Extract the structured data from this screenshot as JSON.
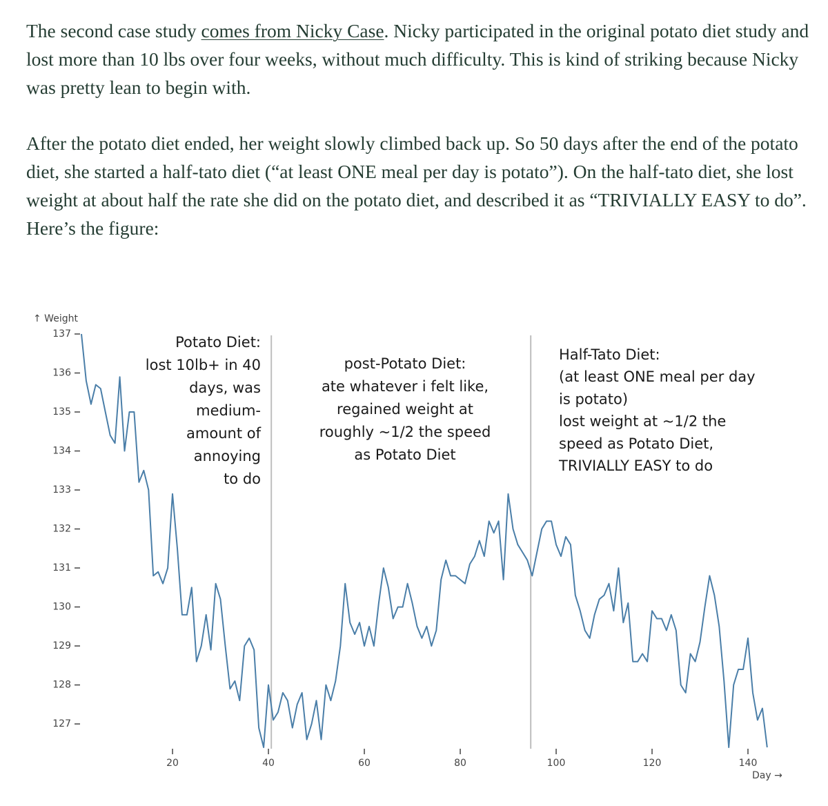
{
  "paragraphs": [
    {
      "before": "The second case study ",
      "link": "comes from Nicky Case",
      "after": ". Nicky participated in the original potato diet study and lost more than 10 lbs over four weeks, without much difficulty. This is kind of striking because Nicky was pretty lean to begin with."
    },
    {
      "text": "After the potato diet ended, her weight slowly climbed back up. So 50 days after the end of the potato diet, she started a half-tato diet (“at least ONE meal per day is potato”). On the half-tato diet, she lost weight at about half the rate she did on the potato diet, and described it as “TRIVIALLY EASY to do”. Here’s the figure:"
    }
  ],
  "chart_data": {
    "type": "line",
    "x_label": "Day →",
    "y_label": "↑ Weight",
    "color": "#4a7ea8",
    "xlim": [
      1,
      148
    ],
    "ylim": [
      126.4,
      137
    ],
    "xticks": [
      20,
      40,
      60,
      80,
      100,
      120,
      140
    ],
    "yticks": [
      127,
      128,
      129,
      130,
      131,
      132,
      133,
      134,
      135,
      136,
      137
    ],
    "vlines": [
      40.6,
      94.7
    ],
    "annotations": [
      [
        "Potato Diet:",
        "lost 10lb+ in 40",
        "days, was",
        "medium-",
        "amount of",
        "annoying",
        "to do"
      ],
      [
        "post-Potato Diet:",
        "ate whatever i felt like,",
        "regained weight at",
        "roughly ~1/2 the speed",
        "as Potato Diet"
      ],
      [
        "Half-Tato Diet:",
        "(at least ONE meal per day",
        "is potato)",
        "lost weight at ~1/2 the",
        "speed as Potato Diet,",
        "TRIVIALLY EASY to do"
      ]
    ],
    "x": [
      1,
      2,
      3,
      4,
      5,
      6,
      7,
      8,
      9,
      10,
      11,
      12,
      13,
      14,
      15,
      16,
      17,
      18,
      19,
      20,
      21,
      22,
      23,
      24,
      25,
      26,
      27,
      28,
      29,
      30,
      31,
      32,
      33,
      34,
      35,
      36,
      37,
      38,
      39,
      40,
      41,
      42,
      43,
      44,
      45,
      46,
      47,
      48,
      49,
      50,
      51,
      52,
      53,
      54,
      55,
      56,
      57,
      58,
      59,
      60,
      61,
      62,
      63,
      64,
      65,
      66,
      67,
      68,
      69,
      70,
      71,
      72,
      73,
      74,
      75,
      76,
      77,
      78,
      79,
      80,
      81,
      82,
      83,
      84,
      85,
      86,
      87,
      88,
      89,
      90,
      91,
      92,
      93,
      94,
      95,
      96,
      97,
      98,
      99,
      100,
      101,
      102,
      103,
      104,
      105,
      106,
      107,
      108,
      109,
      110,
      111,
      112,
      113,
      114,
      115,
      116,
      117,
      118,
      119,
      120,
      121,
      122,
      123,
      124,
      125,
      126,
      127,
      128,
      129,
      130,
      131,
      132,
      133,
      134,
      135,
      136,
      137,
      138,
      139,
      140,
      141,
      142,
      143,
      144
    ],
    "values": [
      137,
      135.8,
      135.2,
      135.7,
      135.6,
      135.0,
      134.4,
      134.2,
      135.9,
      134.0,
      135.0,
      135.0,
      133.2,
      133.5,
      133.0,
      130.8,
      130.9,
      130.6,
      131.0,
      132.9,
      131.5,
      129.8,
      129.8,
      130.5,
      128.6,
      129.0,
      129.8,
      128.9,
      130.6,
      130.2,
      129.0,
      127.9,
      128.1,
      127.6,
      129.0,
      129.2,
      128.9,
      126.9,
      126.4,
      128.0,
      127.1,
      127.3,
      127.8,
      127.6,
      126.9,
      127.5,
      127.8,
      126.6,
      127.0,
      127.6,
      126.6,
      128.0,
      127.6,
      128.1,
      129.0,
      130.6,
      129.6,
      129.3,
      129.6,
      129.0,
      129.5,
      129.0,
      130.1,
      131.0,
      130.5,
      129.7,
      130.0,
      130.0,
      130.6,
      130.1,
      129.5,
      129.2,
      129.5,
      129.0,
      129.4,
      130.7,
      131.2,
      130.8,
      130.8,
      130.7,
      130.6,
      131.1,
      131.3,
      131.7,
      131.3,
      132.2,
      131.9,
      132.2,
      130.7,
      132.9,
      132.0,
      131.6,
      131.4,
      131.2,
      130.8,
      131.4,
      132.0,
      132.2,
      132.2,
      131.6,
      131.3,
      131.8,
      131.6,
      130.3,
      129.9,
      129.4,
      129.2,
      129.8,
      130.2,
      130.3,
      130.6,
      129.9,
      131.0,
      129.6,
      130.1,
      128.6,
      128.6,
      128.8,
      128.6,
      129.9,
      129.7,
      129.7,
      129.4,
      129.8,
      129.4,
      128.0,
      127.8,
      128.8,
      128.6,
      129.1,
      130.0,
      130.8,
      130.3,
      129.5,
      128.1,
      126.4,
      128.0,
      128.4,
      128.4,
      129.2,
      127.8,
      127.1,
      127.4,
      126.4
    ]
  }
}
